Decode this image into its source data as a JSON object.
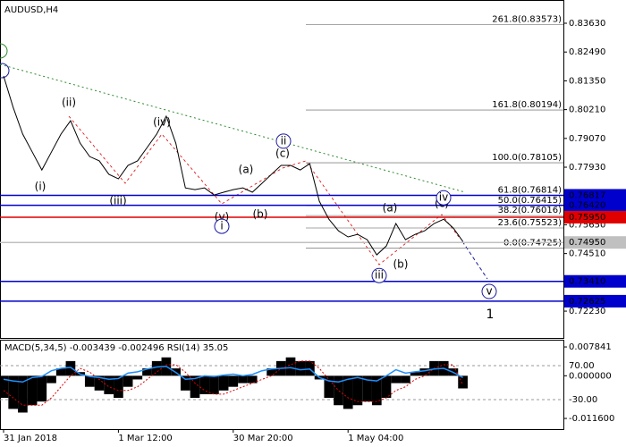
{
  "chart_data": [
    {
      "type": "line",
      "title": "AUDUSD,H4",
      "categories": [
        "31 Jan 2018",
        null,
        null,
        null,
        null,
        null,
        null,
        null,
        null,
        null,
        null,
        null,
        "1 Mar 12:00",
        null,
        null,
        null,
        null,
        null,
        null,
        null,
        null,
        null,
        null,
        null,
        "30 Mar 20:00",
        null,
        null,
        null,
        null,
        null,
        null,
        null,
        null,
        null,
        null,
        null,
        "1 May 04:00",
        null,
        null,
        null,
        null,
        null,
        null,
        null,
        null,
        null,
        null,
        null,
        null
      ],
      "series": [
        {
          "color": "#000000",
          "values": [
            0.8154,
            0.803,
            0.7924,
            0.7853,
            0.7782,
            0.7853,
            0.7924,
            0.7977,
            0.7888,
            0.7835,
            0.7818,
            0.7765,
            0.7747,
            0.78,
            0.7818,
            0.7871,
            0.7924,
            0.7995,
            0.7888,
            0.7711,
            0.7704,
            0.7711,
            0.7683,
            0.7694,
            0.7704,
            0.7711,
            0.7694,
            0.7729,
            0.7765,
            0.78,
            0.78,
            0.7782,
            0.7807,
            0.7658,
            0.7587,
            0.7541,
            0.7517,
            0.7527,
            0.7506,
            0.7446,
            0.7481,
            0.757,
            0.7506,
            0.7527,
            0.7541,
            0.757,
            0.7587,
            0.7552,
            0.7499
          ]
        }
      ],
      "ylim": [
        0.7117,
        0.8455
      ],
      "yticks": [
        {
          "value": 0.8363,
          "label": "0.83630"
        },
        {
          "value": 0.8249,
          "label": "0.82490"
        },
        {
          "value": 0.8135,
          "label": "0.81350"
        },
        {
          "value": 0.8021,
          "label": "0.80210"
        },
        {
          "value": 0.7907,
          "label": "0.79070"
        },
        {
          "value": 0.7793,
          "label": "0.77930"
        },
        {
          "value": 0.7565,
          "label": "0.75650"
        },
        {
          "value": 0.7451,
          "label": "0.74510"
        },
        {
          "value": 0.7223,
          "label": "0.72230"
        }
      ],
      "levels": [
        {
          "value": 0.76817,
          "label": "0.76817",
          "color": "#0000cc"
        },
        {
          "value": 0.7642,
          "label": "0.76420",
          "color": "#0000cc"
        },
        {
          "value": 0.7595,
          "label": "0.75950",
          "color": "#e00000"
        },
        {
          "value": 0.7495,
          "label": "0.74950",
          "color": "#c0c0c0"
        },
        {
          "value": 0.7341,
          "label": "0.73410",
          "color": "#0000cc"
        },
        {
          "value": 0.72625,
          "label": "0.72625",
          "color": "#0000cc"
        }
      ],
      "fib_levels": [
        {
          "value": 0.83573,
          "label": "261.8(0.83573)"
        },
        {
          "value": 0.80194,
          "label": "161.8(0.80194)"
        },
        {
          "value": 0.78105,
          "label": "100.0(0.78105)"
        },
        {
          "value": 0.76814,
          "label": "61.8(0.76814)"
        },
        {
          "value": 0.76415,
          "label": "50.0(0.76415)"
        },
        {
          "value": 0.76016,
          "label": "38.2(0.76016)"
        },
        {
          "value": 0.75523,
          "label": "23.6(0.75523)"
        },
        {
          "value": 0.74725,
          "label": "0.0(0.74725)"
        }
      ],
      "annotations": [
        {
          "text": "(i)",
          "value": 0.7715,
          "color": "#e00000",
          "circled": false
        },
        {
          "text": "(ii)",
          "value": 0.8048,
          "color": "#e00000",
          "circled": false
        },
        {
          "text": "(iii)",
          "value": 0.7658,
          "color": "#e00000",
          "circled": false
        },
        {
          "text": "(iv)",
          "value": 0.797,
          "color": "#e00000",
          "circled": false
        },
        {
          "text": "(v)",
          "value": 0.7595,
          "color": "#e00000",
          "circled": false
        },
        {
          "text": "i",
          "value": 0.7559,
          "color": "#1a1aa0",
          "circled": true
        },
        {
          "text": "(a)",
          "value": 0.7782,
          "color": "#e00000",
          "circled": false
        },
        {
          "text": "(b)",
          "value": 0.7605,
          "color": "#e00000",
          "circled": false
        },
        {
          "text": "(c)",
          "value": 0.7846,
          "color": "#e00000",
          "circled": false
        },
        {
          "text": "ii",
          "value": 0.7896,
          "color": "#1a1aa0",
          "circled": true
        },
        {
          "text": "(a)",
          "value": 0.763,
          "color": "#e00000",
          "circled": false
        },
        {
          "text": "(b)",
          "value": 0.7407,
          "color": "#e00000",
          "circled": false
        },
        {
          "text": "iii",
          "value": 0.7364,
          "color": "#1a1aa0",
          "circled": true
        },
        {
          "text": "(c)",
          "value": 0.7648,
          "color": "#e00000",
          "circled": false
        },
        {
          "text": "iv",
          "value": 0.7672,
          "color": "#1a1aa0",
          "circled": true
        },
        {
          "text": "v",
          "value": 0.7301,
          "color": "#1a1aa0",
          "circled": true
        },
        {
          "text": "1",
          "value": 0.7209,
          "color": "#b00000",
          "circled": false
        }
      ]
    },
    {
      "type": "bar",
      "title": "MACD(5,34,5) -0.003439 -0.002496 RSI(14) 35.05",
      "series": [
        {
          "kind": "bar",
          "color": "#000000",
          "values": [
            -0.006,
            -0.009,
            -0.01,
            -0.008,
            -0.007,
            -0.002,
            0.002,
            0.004,
            0.001,
            -0.003,
            -0.004,
            -0.005,
            -0.006,
            -0.003,
            -0.001,
            0.002,
            0.004,
            0.005,
            0.002,
            -0.004,
            -0.006,
            -0.005,
            -0.005,
            -0.004,
            -0.003,
            -0.002,
            -0.002,
            0,
            0.002,
            0.004,
            0.005,
            0.004,
            0.004,
            -0.001,
            -0.006,
            -0.008,
            -0.009,
            -0.008,
            -0.007,
            -0.008,
            -0.006,
            -0.002,
            -0.002,
            0.001,
            0.002,
            0.004,
            0.004,
            0.002,
            -0.003439
          ]
        },
        {
          "kind": "line",
          "dashed": true,
          "color": "#e00000",
          "values": [
            -0.004,
            -0.006,
            -0.008,
            -0.008,
            -0.008,
            -0.006,
            -0.003,
            0,
            0.002,
            0.001,
            -0.001,
            -0.003,
            -0.004,
            -0.004,
            -0.003,
            -0.001,
            0.001,
            0.003,
            0.003,
            0.001,
            -0.002,
            -0.004,
            -0.005,
            -0.005,
            -0.004,
            -0.003,
            -0.002,
            -0.001,
            0,
            0.002,
            0.003,
            0.004,
            0.004,
            0.002,
            -0.001,
            -0.004,
            -0.006,
            -0.007,
            -0.007,
            -0.007,
            -0.006,
            -0.004,
            -0.003,
            -0.001,
            0,
            0.002,
            0.003,
            0.003,
            -0.002496
          ]
        },
        {
          "kind": "line",
          "dashed": false,
          "axis": "y2",
          "color": "#1e90ff",
          "values": [
            30,
            25,
            22,
            35,
            38,
            55,
            62,
            65,
            45,
            38,
            35,
            30,
            32,
            48,
            52,
            60,
            66,
            68,
            50,
            30,
            32,
            40,
            38,
            42,
            45,
            40,
            44,
            55,
            60,
            62,
            64,
            58,
            60,
            35,
            25,
            22,
            30,
            35,
            28,
            25,
            40,
            58,
            48,
            52,
            55,
            60,
            62,
            50,
            35.05
          ]
        }
      ],
      "ylim": [
        -0.0145,
        0.0098
      ],
      "yticks": [
        0.007841,
        {
          "value": 0,
          "label": "0.000000"
        },
        {
          "value": -0.0116,
          "label": "-0.011600"
        }
      ],
      "y2lim": [
        -116.8,
        146.3
      ],
      "y2ticks": [
        {
          "value": 70,
          "label": "70.00"
        },
        {
          "value": -30,
          "label": "-30.00"
        }
      ]
    }
  ]
}
